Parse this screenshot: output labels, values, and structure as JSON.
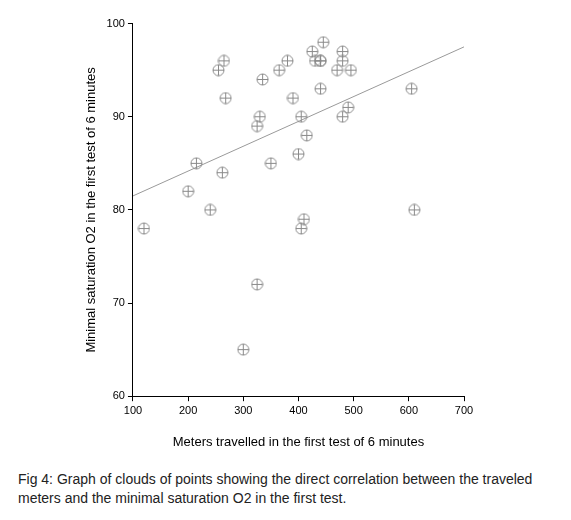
{
  "chart_data": {
    "type": "scatter",
    "x_label": "Meters travelled in the first test of 6 minutes",
    "y_label": "Minimal saturation O2 in the first test of 6 minutes",
    "caption": "Fig 4: Graph of clouds of points showing the direct correlation between the traveled meters and the minimal saturation O2 in the first test.",
    "series": [
      {
        "type": "scatter",
        "marker": "circle-cross",
        "color": "#8a8a8a",
        "x": [
          120,
          200,
          215,
          240,
          255,
          265,
          268,
          262,
          325,
          330,
          335,
          325,
          300,
          350,
          365,
          380,
          390,
          400,
          405,
          410,
          405,
          415,
          425,
          430,
          440,
          445,
          440,
          440,
          470,
          480,
          480,
          480,
          490,
          495,
          605,
          610
        ],
        "values": [
          78,
          82,
          85,
          80,
          95,
          96,
          92,
          84,
          89,
          90,
          94,
          72,
          65,
          85,
          95,
          96,
          92,
          86,
          90,
          79,
          78,
          88,
          97,
          96,
          96,
          98,
          93,
          96,
          95,
          97,
          96,
          90,
          91,
          95,
          93,
          80
        ]
      },
      {
        "type": "line",
        "line_style": "solid",
        "color": "#9a9a9a",
        "x": [
          100,
          700
        ],
        "values": [
          81.5,
          97.5
        ]
      }
    ],
    "xlim": [
      100,
      700
    ],
    "xticks": [
      100,
      200,
      300,
      400,
      500,
      600,
      700
    ],
    "ylim": [
      60,
      100
    ],
    "yticks": [
      60,
      70,
      80,
      90,
      100
    ],
    "grid": false
  }
}
